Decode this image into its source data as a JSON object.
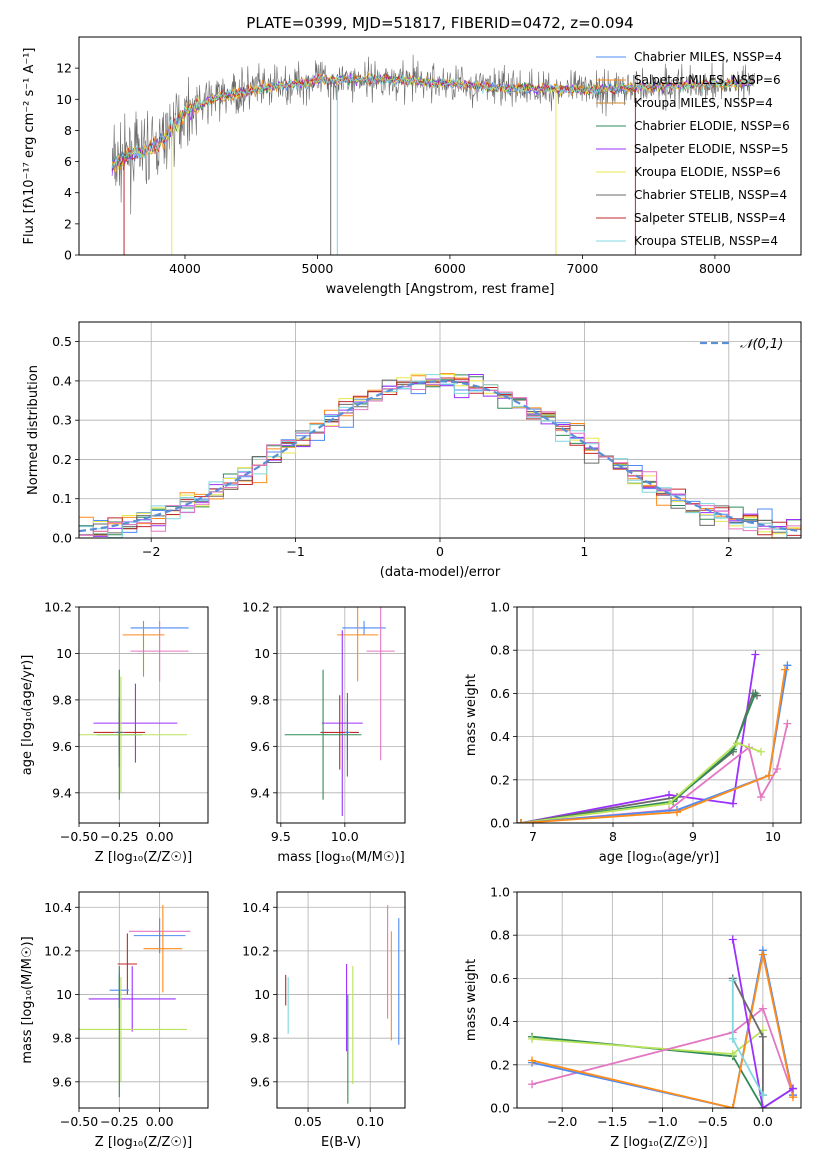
{
  "colors": {
    "chabrier_miles": "#4c8bf5",
    "salpeter_miles": "#ff8c1a",
    "kroupa_miles": "#d08a2c",
    "chabrier_elodie": "#2e8b57",
    "salpeter_elodie": "#9b30ff",
    "kroupa_elodie": "#e8e84a",
    "chabrier_stelib": "#6b6b6b",
    "salpeter_stelib": "#c0282d",
    "kroupa_stelib": "#7fd8e0",
    "pink": "#e377c2",
    "lime": "#b9e35a",
    "normal_curve": "#5b8fd6"
  },
  "chart_data": [
    {
      "type": "line",
      "id": "spectrum",
      "title": "PLATE=0399, MJD=51817, FIBERID=0472, z=0.094",
      "xlabel": "wavelength [Angstrom, rest frame]",
      "ylabel": "Flux [fλ10⁻¹⁷ erg cm⁻² s⁻¹ A⁻¹]",
      "xlim": [
        3200,
        8650
      ],
      "ylim": [
        0,
        14
      ],
      "xticks": [
        4000,
        5000,
        6000,
        7000,
        8000
      ],
      "yticks": [
        0,
        2,
        4,
        6,
        8,
        10,
        12
      ],
      "grid": false,
      "legend_position": "right",
      "legend": [
        {
          "label": "Chabrier MILES, NSSP=4",
          "color": "#4c8bf5"
        },
        {
          "label": "Salpeter MILES, NSSP=6",
          "color": "#ff8c1a"
        },
        {
          "label": "Kroupa MILES, NSSP=4",
          "color": "#d08a2c"
        },
        {
          "label": "Chabrier ELODIE, NSSP=6",
          "color": "#2e8b57"
        },
        {
          "label": "Salpeter ELODIE, NSSP=5",
          "color": "#9b30ff"
        },
        {
          "label": "Kroupa ELODIE, NSSP=6",
          "color": "#e8e84a"
        },
        {
          "label": "Chabrier STELIB, NSSP=4",
          "color": "#6b6b6b"
        },
        {
          "label": "Salpeter STELIB, NSSP=4",
          "color": "#c0282d"
        },
        {
          "label": "Kroupa STELIB, NSSP=4",
          "color": "#7fd8e0"
        }
      ],
      "continuum": {
        "wavelength": [
          3450,
          3600,
          3800,
          4000,
          4200,
          4500,
          5000,
          5500,
          6000,
          6500,
          7000,
          7500,
          8000,
          8300
        ],
        "flux": [
          5.8,
          6.5,
          7.0,
          9.2,
          10.0,
          10.6,
          11.2,
          11.3,
          11.0,
          10.7,
          10.6,
          10.8,
          11.0,
          11.1
        ]
      }
    },
    {
      "type": "step",
      "id": "residuals",
      "xlabel": "(data-model)/error",
      "ylabel": "Normed distribution",
      "xlim": [
        -2.5,
        2.5
      ],
      "ylim": [
        0,
        0.55
      ],
      "xticks": [
        -2,
        -1,
        0,
        1,
        2
      ],
      "yticks": [
        0.0,
        0.1,
        0.2,
        0.3,
        0.4,
        0.5
      ],
      "grid": true,
      "legend_position": "upper right",
      "legend": [
        {
          "label": "𝒩(0,1)",
          "color": "#5b8fd6",
          "style": "dashed"
        }
      ],
      "normal_curve": {
        "mean": 0,
        "sigma": 1
      }
    },
    {
      "type": "errorbar",
      "id": "age_vs_Z",
      "xlabel": "Z [log₁₀(Z/Z☉)]",
      "ylabel": "age  [log₁₀(age/yr)]",
      "xlim": [
        -0.5,
        0.3
      ],
      "ylim": [
        9.27,
        10.2
      ],
      "xticks": [
        -0.5,
        -0.25,
        0.0
      ],
      "xticklabels": [
        "−0.50",
        "−0.25",
        "0.00"
      ],
      "yticks": [
        9.4,
        9.6,
        9.8,
        10.0,
        10.2
      ],
      "grid": true,
      "points": [
        {
          "x": 0.0,
          "xerr": 0.18,
          "y": 10.11,
          "yerr": 0.0,
          "color": "#4c8bf5"
        },
        {
          "x": -0.1,
          "y": 10.08,
          "xerr": 0.13,
          "yerr": 0.0,
          "color": "#ff8c1a"
        },
        {
          "x": -0.1,
          "y": 10.02,
          "xerr": 0.0,
          "yerr": 0.12,
          "color": "#d08a2c"
        },
        {
          "x": 0.0,
          "y": 10.01,
          "xerr": 0.18,
          "yerr": 0.13,
          "color": "#e377c2"
        },
        {
          "x": -0.15,
          "y": 9.7,
          "xerr": 0.26,
          "yerr": 0.17,
          "color": "#9b30ff"
        },
        {
          "x": -0.25,
          "y": 9.66,
          "xerr": 0.16,
          "yerr": 0.15,
          "color": "#c0282d"
        },
        {
          "x": -0.25,
          "y": 9.66,
          "xerr": 0.03,
          "yerr": 0.15,
          "color": "#4c8bf5"
        },
        {
          "x": -0.25,
          "y": 9.65,
          "xerr": 0.14,
          "yerr": 0.28,
          "color": "#2e8b57"
        },
        {
          "x": -0.24,
          "y": 9.65,
          "xerr": 0.41,
          "yerr": 0.25,
          "color": "#b9e35a"
        },
        {
          "x": -0.25,
          "y": 9.66,
          "xerr": 0.02,
          "yerr": 0.1,
          "color": "#6b6b6b"
        }
      ]
    },
    {
      "type": "errorbar",
      "id": "age_vs_mass",
      "xlabel": "mass [log₁₀(M/M☉)]",
      "ylabel": "",
      "xlim": [
        9.47,
        10.47
      ],
      "ylim": [
        9.27,
        10.2
      ],
      "xticks": [
        9.5,
        10.0
      ],
      "xticklabels": [
        "9.5",
        "10.0"
      ],
      "yticks": [
        9.4,
        9.6,
        9.8,
        10.0,
        10.2
      ],
      "grid": true,
      "points": [
        {
          "x": 10.15,
          "y": 10.11,
          "xerr": 0.17,
          "yerr": 0.03,
          "color": "#4c8bf5"
        },
        {
          "x": 10.1,
          "y": 10.08,
          "xerr": 0.16,
          "yerr": 0.2,
          "color": "#ff8c1a"
        },
        {
          "x": 10.28,
          "y": 10.01,
          "xerr": 0.11,
          "yerr": 0.47,
          "color": "#e377c2"
        },
        {
          "x": 9.98,
          "y": 9.7,
          "xerr": 0.16,
          "yerr": 0.4,
          "color": "#9b30ff"
        },
        {
          "x": 9.96,
          "y": 9.66,
          "xerr": 0.15,
          "yerr": 0.16,
          "color": "#c0282d"
        },
        {
          "x": 9.83,
          "y": 9.65,
          "xerr": 0.3,
          "yerr": 0.28,
          "color": "#2e8b57"
        },
        {
          "x": 10.02,
          "y": 9.66,
          "xerr": 0.02,
          "yerr": 0.12,
          "color": "#4c8bf5"
        },
        {
          "x": 10.02,
          "y": 9.65,
          "xerr": 0.0,
          "yerr": 0.18,
          "color": "#6b6b6b"
        }
      ]
    },
    {
      "type": "line",
      "id": "weight_vs_age",
      "xlabel": "age  [log₁₀(age/yr)]",
      "ylabel": "mass weight",
      "xlim": [
        6.8,
        10.35
      ],
      "ylim": [
        0,
        1
      ],
      "xticks": [
        7,
        8,
        9,
        10
      ],
      "yticks": [
        0.0,
        0.2,
        0.4,
        0.6,
        0.8,
        1.0
      ],
      "grid": true,
      "series": [
        {
          "color": "#9b30ff",
          "x": [
            6.85,
            8.7,
            9.5,
            9.78
          ],
          "y": [
            0.0,
            0.13,
            0.09,
            0.78
          ]
        },
        {
          "color": "#e377c2",
          "x": [
            6.85,
            8.7,
            9.7,
            9.85,
            10.05,
            10.18
          ],
          "y": [
            0.0,
            0.06,
            0.35,
            0.12,
            0.25,
            0.46
          ]
        },
        {
          "color": "#6b6b6b",
          "x": [
            6.85,
            8.8,
            9.5,
            9.75,
            9.8
          ],
          "y": [
            0.0,
            0.12,
            0.33,
            0.6,
            0.59
          ]
        },
        {
          "color": "#2e8b57",
          "x": [
            6.85,
            8.75,
            9.5,
            9.78
          ],
          "y": [
            0.0,
            0.1,
            0.34,
            0.6
          ]
        },
        {
          "color": "#b9e35a",
          "x": [
            6.85,
            8.7,
            9.55,
            9.85
          ],
          "y": [
            0.0,
            0.09,
            0.37,
            0.33
          ]
        },
        {
          "color": "#4c8bf5",
          "x": [
            6.85,
            8.8,
            9.95,
            10.18
          ],
          "y": [
            0.0,
            0.06,
            0.22,
            0.73
          ]
        },
        {
          "color": "#ff8c1a",
          "x": [
            6.85,
            8.8,
            9.95,
            10.15
          ],
          "y": [
            0.0,
            0.05,
            0.22,
            0.71
          ]
        }
      ]
    },
    {
      "type": "errorbar",
      "id": "mass_vs_Z",
      "xlabel": "Z [log₁₀(Z/Z☉)]",
      "ylabel": "mass [log₁₀(M/M☉)]",
      "xlim": [
        -0.5,
        0.3
      ],
      "ylim": [
        9.48,
        10.47
      ],
      "xticks": [
        -0.5,
        -0.25,
        0.0
      ],
      "xticklabels": [
        "−0.50",
        "−0.25",
        "0.00"
      ],
      "yticks": [
        9.6,
        9.8,
        10.0,
        10.2,
        10.4
      ],
      "grid": true,
      "points": [
        {
          "x": 0.0,
          "y": 10.29,
          "xerr": 0.19,
          "yerr": 0.0,
          "color": "#e377c2"
        },
        {
          "x": 0.0,
          "y": 10.27,
          "xerr": 0.16,
          "yerr": 0.08,
          "color": "#4c8bf5"
        },
        {
          "x": 0.02,
          "y": 10.21,
          "xerr": 0.12,
          "yerr": 0.2,
          "color": "#ff8c1a"
        },
        {
          "x": -0.2,
          "y": 10.14,
          "xerr": 0.06,
          "yerr": 0.14,
          "color": "#c0282d"
        },
        {
          "x": -0.25,
          "y": 10.02,
          "xerr": 0.06,
          "yerr": 0.08,
          "color": "#4c8bf5"
        },
        {
          "x": -0.17,
          "y": 9.98,
          "xerr": 0.27,
          "yerr": 0.15,
          "color": "#9b30ff"
        },
        {
          "x": -0.24,
          "y": 9.84,
          "xerr": 0.41,
          "yerr": 0.24,
          "color": "#b9e35a"
        },
        {
          "x": -0.25,
          "y": 9.83,
          "xerr": 0.0,
          "yerr": 0.3,
          "color": "#2e8b57"
        }
      ]
    },
    {
      "type": "errorbar",
      "id": "mass_vs_EBV",
      "xlabel": "E(B-V)",
      "ylabel": "",
      "xlim": [
        0.025,
        0.128
      ],
      "ylim": [
        9.48,
        10.47
      ],
      "xticks": [
        0.05,
        0.1
      ],
      "xticklabels": [
        "0.05",
        "0.10"
      ],
      "yticks": [
        9.6,
        9.8,
        10.0,
        10.2,
        10.4
      ],
      "grid": true,
      "points": [
        {
          "x": 0.032,
          "y": 10.02,
          "yerr": 0.07,
          "color": "#c0282d"
        },
        {
          "x": 0.034,
          "y": 9.95,
          "yerr": 0.13,
          "color": "#7fd8e0"
        },
        {
          "x": 0.081,
          "y": 9.94,
          "yerr": 0.2,
          "color": "#9b30ff"
        },
        {
          "x": 0.082,
          "y": 9.75,
          "yerr": 0.25,
          "color": "#2e8b57"
        },
        {
          "x": 0.086,
          "y": 9.86,
          "yerr": 0.27,
          "color": "#b9e35a"
        },
        {
          "x": 0.114,
          "y": 10.15,
          "yerr": 0.26,
          "color": "#e377c2"
        },
        {
          "x": 0.117,
          "y": 10.04,
          "yerr": 0.25,
          "color": "#ff8c1a"
        },
        {
          "x": 0.123,
          "y": 10.06,
          "yerr": 0.29,
          "color": "#4c8bf5"
        }
      ]
    },
    {
      "type": "line",
      "id": "weight_vs_Z",
      "xlabel": "Z [log₁₀(Z/Z☉)]",
      "ylabel": "mass weight",
      "xlim": [
        -2.45,
        0.38
      ],
      "ylim": [
        0,
        1
      ],
      "xticks": [
        -2.0,
        -1.5,
        -1.0,
        -0.5,
        0.0
      ],
      "xticklabels": [
        "−2.0",
        "−1.5",
        "−1.0",
        "−0.5",
        "0.0"
      ],
      "yticks": [
        0.0,
        0.2,
        0.4,
        0.6,
        0.8,
        1.0
      ],
      "grid": true,
      "series": [
        {
          "color": "#2e8b57",
          "x": [
            -2.3,
            -0.3,
            0.0,
            0.3
          ],
          "y": [
            0.33,
            0.24,
            0.0,
            0.09
          ]
        },
        {
          "color": "#b9e35a",
          "x": [
            -2.3,
            -0.3,
            0.0
          ],
          "y": [
            0.32,
            0.25,
            0.36
          ]
        },
        {
          "color": "#e377c2",
          "x": [
            -2.3,
            -0.3,
            0.0,
            0.3
          ],
          "y": [
            0.11,
            0.35,
            0.46,
            0.06
          ]
        },
        {
          "color": "#4c8bf5",
          "x": [
            -2.3,
            -0.3,
            0.0,
            0.3
          ],
          "y": [
            0.21,
            0.0,
            0.73,
            0.06
          ]
        },
        {
          "color": "#ff8c1a",
          "x": [
            -2.3,
            -0.3,
            0.0,
            0.3
          ],
          "y": [
            0.22,
            0.0,
            0.71,
            0.05
          ]
        },
        {
          "color": "#9b30ff",
          "x": [
            -0.3,
            0.0,
            0.3
          ],
          "y": [
            0.78,
            0.0,
            0.09
          ]
        },
        {
          "color": "#6b6b6b",
          "x": [
            -0.3,
            0.0,
            0.0
          ],
          "y": [
            0.6,
            0.33,
            0.06
          ]
        },
        {
          "color": "#7fd8e0",
          "x": [
            -0.3,
            -0.3,
            0.0
          ],
          "y": [
            0.59,
            0.32,
            0.06
          ]
        }
      ]
    }
  ]
}
